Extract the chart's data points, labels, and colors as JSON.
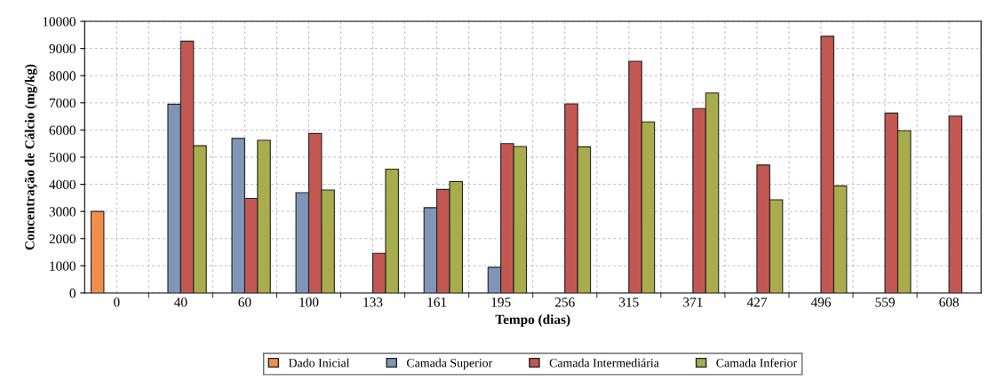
{
  "chart_data": {
    "type": "bar",
    "xlabel": "Tempo (dias)",
    "ylabel": "Concentração de Cálcio (mg/kg)",
    "categories": [
      "0",
      "40",
      "60",
      "100",
      "133",
      "161",
      "195",
      "256",
      "315",
      "371",
      "427",
      "496",
      "559",
      "608"
    ],
    "series": [
      {
        "name": "Dado Inicial",
        "color": "#ef8f4a",
        "values": [
          3000,
          null,
          null,
          null,
          null,
          null,
          null,
          null,
          null,
          null,
          null,
          null,
          null,
          null
        ]
      },
      {
        "name": "Camada Superior",
        "color": "#7f96b8",
        "values": [
          null,
          6950,
          5690,
          3690,
          null,
          3140,
          940,
          null,
          null,
          null,
          null,
          null,
          null,
          null
        ]
      },
      {
        "name": "Camada Intermediária",
        "color": "#c35853",
        "values": [
          null,
          9270,
          3480,
          5870,
          1460,
          3810,
          5500,
          6960,
          8530,
          6790,
          4710,
          9450,
          6620,
          6510
        ]
      },
      {
        "name": "Camada Inferior",
        "color": "#a9ac4c",
        "values": [
          null,
          5420,
          5620,
          3790,
          4560,
          4100,
          5390,
          5380,
          6300,
          7360,
          3430,
          3940,
          5970,
          null
        ]
      }
    ],
    "ylim": [
      0,
      10000
    ],
    "yticks": [
      0,
      1000,
      2000,
      3000,
      4000,
      5000,
      6000,
      7000,
      8000,
      9000,
      10000
    ],
    "grid": true,
    "legend": "bottom"
  }
}
